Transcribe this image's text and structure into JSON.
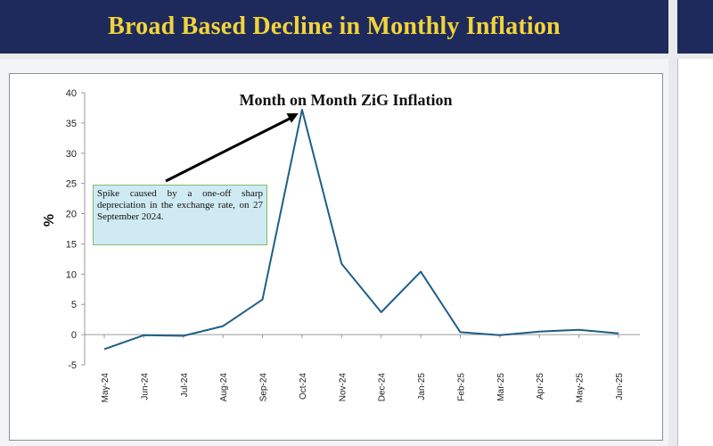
{
  "slide": {
    "title": "Broad Based Decline in Monthly Inflation"
  },
  "colors": {
    "banner_bg": "#1f2a5c",
    "banner_text": "#f2d43a",
    "series_line": "#1f5f86",
    "note_bg": "#cfeaf3",
    "note_border": "#7fbf6a"
  },
  "chart_data": {
    "type": "line",
    "title": "Month on Month ZiG Inflation",
    "ylabel": "%",
    "xlabel": "",
    "ylim": [
      -5,
      40
    ],
    "yticks": [
      -5,
      0,
      5,
      10,
      15,
      20,
      25,
      30,
      35,
      40
    ],
    "grid": false,
    "categories": [
      "May-24",
      "Jun-24",
      "Jul-24",
      "Aug-24",
      "Sep-24",
      "Oct-24",
      "Nov-24",
      "Dec-24",
      "Jan-25",
      "Feb-25",
      "Mar-25",
      "Apr-25",
      "May-25",
      "Jun-25"
    ],
    "series": [
      {
        "values": [
          -2.4,
          -0.1,
          -0.2,
          1.4,
          5.8,
          37.2,
          11.7,
          3.7,
          10.4,
          0.4,
          -0.1,
          0.5,
          0.8,
          0.2
        ]
      }
    ],
    "annotation": {
      "text": "Spike caused by a one-off sharp depreciation in the exchange rate, on 27 September 2024.",
      "points_to": "Oct-24"
    }
  }
}
